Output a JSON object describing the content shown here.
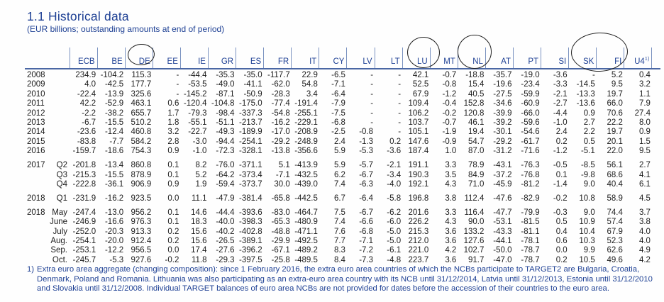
{
  "title": "1.1 Historical data",
  "subtitle": "(EUR billions; outstanding amounts at end of period)",
  "colors": {
    "heading_blue": "#1e4094",
    "rule_blue": "#4a67a4",
    "tick_blue": "#7a92c0",
    "data_text": "#1c1c1c",
    "annotation_stroke": "#1f1f1f"
  },
  "table": {
    "columns": [
      "ECB",
      "BE",
      "DE",
      "EE",
      "IE",
      "GR",
      "ES",
      "FR",
      "IT",
      "CY",
      "LV",
      "LT",
      "LU",
      "MT",
      "NL",
      "AT",
      "PT",
      "SI",
      "SK",
      "FI",
      "U4"
    ],
    "superscript_column": "U4",
    "superscript_text": "1)",
    "circled_columns": [
      [
        "DE"
      ],
      [
        "LU"
      ],
      [
        "NL"
      ],
      [
        "SK",
        "FI"
      ]
    ],
    "row_groups": [
      {
        "rows": [
          {
            "year": "2008",
            "period": "",
            "values": [
              "234.9",
              "-104.2",
              "115.3",
              "-",
              "-44.4",
              "-35.3",
              "-35.0",
              "-117.7",
              "22.9",
              "-6.5",
              "-",
              "-",
              "42.1",
              "-0.7",
              "-18.8",
              "-35.7",
              "-19.0",
              "-3.6",
              "-",
              "5.2",
              "0.4"
            ]
          },
          {
            "year": "2009",
            "period": "",
            "values": [
              "4.0",
              "-42.5",
              "177.7",
              "-",
              "-53.5",
              "-49.0",
              "-41.1",
              "-62.0",
              "54.8",
              "-7.1",
              "-",
              "-",
              "52.5",
              "-0.8",
              "15.4",
              "-19.6",
              "-23.4",
              "-3.3",
              "-14.5",
              "9.5",
              "3.2"
            ]
          },
          {
            "year": "2010",
            "period": "",
            "values": [
              "-22.4",
              "-13.9",
              "325.6",
              "-",
              "-145.2",
              "-87.1",
              "-50.9",
              "-28.3",
              "3.4",
              "-6.4",
              "-",
              "-",
              "67.9",
              "-1.2",
              "40.5",
              "-27.5",
              "-59.9",
              "-2.1",
              "-13.3",
              "19.7",
              "1.1"
            ]
          },
          {
            "year": "2011",
            "period": "",
            "values": [
              "42.2",
              "-52.9",
              "463.1",
              "0.6",
              "-120.4",
              "-104.8",
              "-175.0",
              "-77.4",
              "-191.4",
              "-7.9",
              "-",
              "-",
              "109.4",
              "-0.4",
              "152.8",
              "-34.6",
              "-60.9",
              "-2.7",
              "-13.6",
              "66.0",
              "7.9"
            ]
          },
          {
            "year": "2012",
            "period": "",
            "values": [
              "-2.2",
              "-38.2",
              "655.7",
              "1.7",
              "-79.3",
              "-98.4",
              "-337.3",
              "-54.8",
              "-255.1",
              "-7.5",
              "-",
              "-",
              "106.2",
              "-0.2",
              "120.8",
              "-39.9",
              "-66.0",
              "-4.4",
              "0.9",
              "70.6",
              "27.4"
            ]
          },
          {
            "year": "2013",
            "period": "",
            "values": [
              "-6.7",
              "-15.5",
              "510.2",
              "1.8",
              "-55.1",
              "-51.1",
              "-213.7",
              "-16.2",
              "-229.1",
              "-6.8",
              "-",
              "-",
              "103.7",
              "-0.7",
              "46.1",
              "-39.2",
              "-59.6",
              "-1.0",
              "2.7",
              "22.2",
              "8.0"
            ]
          },
          {
            "year": "2014",
            "period": "",
            "values": [
              "-23.6",
              "-12.4",
              "460.8",
              "3.2",
              "-22.7",
              "-49.3",
              "-189.9",
              "-17.0",
              "-208.9",
              "-2.5",
              "-0.8",
              "-",
              "105.1",
              "-1.9",
              "19.4",
              "-30.1",
              "-54.6",
              "2.4",
              "2.2",
              "19.7",
              "0.9"
            ]
          },
          {
            "year": "2015",
            "period": "",
            "values": [
              "-83.8",
              "-7.7",
              "584.2",
              "2.8",
              "-3.0",
              "-94.4",
              "-254.1",
              "-29.2",
              "-248.9",
              "2.4",
              "-1.3",
              "0.2",
              "147.6",
              "-0.9",
              "54.7",
              "-29.2",
              "-61.7",
              "0.2",
              "0.5",
              "20.1",
              "1.5"
            ]
          },
          {
            "year": "2016",
            "period": "",
            "values": [
              "-159.7",
              "-18.6",
              "754.3",
              "0.9",
              "-1.0",
              "-72.3",
              "-328.1",
              "-13.8",
              "-356.6",
              "5.9",
              "-5.3",
              "-3.6",
              "187.4",
              "1.0",
              "87.0",
              "-31.2",
              "-71.6",
              "-1.2",
              "-5.1",
              "22.0",
              "9.5"
            ]
          }
        ]
      },
      {
        "rows": [
          {
            "year": "2017",
            "period": "Q2",
            "values": [
              "-201.8",
              "-13.4",
              "860.8",
              "0.1",
              "8.2",
              "-76.0",
              "-371.1",
              "5.1",
              "-413.9",
              "5.9",
              "-5.7",
              "-2.1",
              "191.1",
              "3.3",
              "78.9",
              "-43.1",
              "-76.3",
              "-0.5",
              "-8.5",
              "56.1",
              "2.7"
            ]
          },
          {
            "year": "",
            "period": "Q3",
            "values": [
              "-215.3",
              "-15.5",
              "878.9",
              "0.1",
              "5.2",
              "-64.2",
              "-373.4",
              "-7.1",
              "-432.5",
              "6.2",
              "-6.7",
              "-3.4",
              "190.3",
              "3.5",
              "84.9",
              "-37.2",
              "-76.8",
              "0.1",
              "-9.8",
              "68.6",
              "4.1"
            ]
          },
          {
            "year": "",
            "period": "Q4",
            "values": [
              "-222.8",
              "-36.1",
              "906.9",
              "0.9",
              "1.9",
              "-59.4",
              "-373.7",
              "30.0",
              "-439.0",
              "7.4",
              "-6.3",
              "-4.0",
              "192.1",
              "4.3",
              "71.0",
              "-45.9",
              "-81.2",
              "-1.4",
              "9.0",
              "40.4",
              "6.1"
            ]
          }
        ]
      },
      {
        "rows": [
          {
            "year": "2018",
            "period": "Q1",
            "values": [
              "-231.9",
              "-16.2",
              "923.5",
              "0.0",
              "11.1",
              "-47.9",
              "-381.4",
              "-65.8",
              "-442.5",
              "6.7",
              "-6.4",
              "-5.8",
              "196.8",
              "3.8",
              "112.4",
              "-47.6",
              "-82.9",
              "-0.2",
              "10.8",
              "58.9",
              "4.5"
            ]
          }
        ]
      },
      {
        "rows": [
          {
            "year": "2018",
            "period": "May",
            "values": [
              "-247.4",
              "-13.0",
              "956.2",
              "0.1",
              "14.6",
              "-44.4",
              "-393.6",
              "-83.0",
              "-464.7",
              "7.5",
              "-6.7",
              "-6.2",
              "201.6",
              "3.3",
              "116.4",
              "-47.7",
              "-79.9",
              "-0.3",
              "9.0",
              "74.4",
              "3.7"
            ]
          },
          {
            "year": "",
            "period": "June",
            "values": [
              "-246.9",
              "-16.6",
              "976.3",
              "0.1",
              "18.3",
              "-40.0",
              "-398.3",
              "-65.3",
              "-480.9",
              "7.4",
              "-6.6",
              "-6.0",
              "226.2",
              "4.3",
              "90.0",
              "-53.1",
              "-81.5",
              "0.5",
              "10.9",
              "57.4",
              "3.8"
            ]
          },
          {
            "year": "",
            "period": "July",
            "values": [
              "-252.0",
              "-20.3",
              "913.3",
              "0.2",
              "15.6",
              "-40.2",
              "-402.8",
              "-48.8",
              "-471.1",
              "7.6",
              "-6.8",
              "-5.0",
              "215.3",
              "3.6",
              "133.2",
              "-43.3",
              "-81.1",
              "0.4",
              "10.4",
              "67.9",
              "4.0"
            ]
          },
          {
            "year": "",
            "period": "Aug.",
            "values": [
              "-254.1",
              "-20.0",
              "912.4",
              "0.2",
              "15.6",
              "-26.5",
              "-389.1",
              "-29.9",
              "-492.5",
              "7.7",
              "-7.1",
              "-5.0",
              "212.0",
              "3.6",
              "127.6",
              "-44.1",
              "-78.1",
              "0.6",
              "10.3",
              "52.3",
              "4.0"
            ]
          },
          {
            "year": "",
            "period": "Sep.",
            "values": [
              "-253.1",
              "-12.2",
              "956.5",
              "0.0",
              "17.4",
              "-27.6",
              "-396.2",
              "-67.1",
              "-489.2",
              "8.3",
              "-7.2",
              "-6.1",
              "221.0",
              "4.2",
              "102.7",
              "-50.0",
              "-78.7",
              "0.0",
              "9.9",
              "62.6",
              "4.9"
            ]
          },
          {
            "year": "",
            "period": "Oct.",
            "values": [
              "-245.7",
              "-5.3",
              "927.6",
              "-0.2",
              "11.8",
              "-29.3",
              "-397.5",
              "-25.8",
              "-489.5",
              "8.4",
              "-7.3",
              "-4.8",
              "223.7",
              "3.6",
              "91.7",
              "-47.0",
              "-78.7",
              "0.2",
              "10.5",
              "49.6",
              "4.2"
            ]
          }
        ]
      }
    ]
  },
  "footnote": {
    "marker": "1)",
    "lines": [
      "Extra euro area aggregate (changing composition): since 1 February 2016, the extra euro area countries of which the NCBs participate to TARGET2 are Bulgaria, Croatia,",
      "Denmark, Poland and Romania. Lithuania was also participating as an extra-euro area country with its NCB until 31/12/2014, Latvia until 31/12/2013, Estonia until 31/12/2010",
      "and Slovakia until 31/12/2008. Individual TARGET balances of euro area NCBs are not provided for dates before the accession of their countries to the euro area."
    ]
  }
}
